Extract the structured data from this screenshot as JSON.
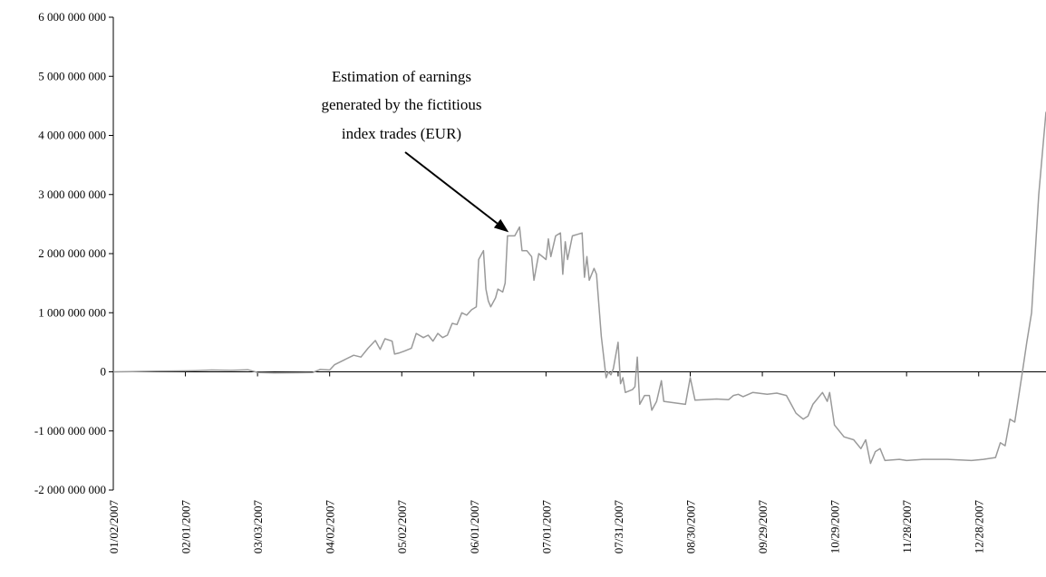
{
  "chart_data": {
    "type": "line",
    "title": "",
    "xlabel": "",
    "ylabel": "",
    "ylim": [
      -2000000000,
      6000000000
    ],
    "y_ticks": [
      {
        "value": 6000000000,
        "label": "6 000 000 000"
      },
      {
        "value": 5000000000,
        "label": "5 000 000 000"
      },
      {
        "value": 4000000000,
        "label": "4 000 000 000"
      },
      {
        "value": 3000000000,
        "label": "3 000 000 000"
      },
      {
        "value": 2000000000,
        "label": "2 000 000 000"
      },
      {
        "value": 1000000000,
        "label": "1 000 000 000"
      },
      {
        "value": 0,
        "label": "0"
      },
      {
        "value": -1000000000,
        "label": "-1 000 000 000"
      },
      {
        "value": -2000000000,
        "label": "-2 000 000 000"
      }
    ],
    "xlim": [
      "01/02/2007",
      "01/25/2008"
    ],
    "x_ticks": [
      "01/02/2007",
      "02/01/2007",
      "03/03/2007",
      "04/02/2007",
      "05/02/2007",
      "06/01/2007",
      "07/01/2007",
      "07/31/2007",
      "08/30/2007",
      "09/29/2007",
      "10/29/2007",
      "11/28/2007",
      "12/28/2007"
    ],
    "grid": false,
    "line_color": "#9a9a9a",
    "annotation": {
      "lines": [
        "Estimation of earnings",
        "generated by the fictitious",
        "index trades (EUR)"
      ],
      "arrow_target": {
        "x": "06/17/2007",
        "y": 2300000000
      }
    },
    "series": [
      {
        "points": [
          [
            "01/02/2007",
            0
          ],
          [
            "01/10/2007",
            5000000
          ],
          [
            "01/20/2007",
            10000000
          ],
          [
            "01/30/2007",
            15000000
          ],
          [
            "02/05/2007",
            20000000
          ],
          [
            "02/12/2007",
            30000000
          ],
          [
            "02/20/2007",
            25000000
          ],
          [
            "02/27/2007",
            35000000
          ],
          [
            "03/03/2007",
            -10000000
          ],
          [
            "03/10/2007",
            -20000000
          ],
          [
            "03/20/2007",
            -15000000
          ],
          [
            "03/26/2007",
            -10000000
          ],
          [
            "03/29/2007",
            40000000
          ],
          [
            "04/02/2007",
            30000000
          ],
          [
            "04/04/2007",
            120000000
          ],
          [
            "04/08/2007",
            200000000
          ],
          [
            "04/12/2007",
            280000000
          ],
          [
            "04/15/2007",
            250000000
          ],
          [
            "04/18/2007",
            400000000
          ],
          [
            "04/21/2007",
            530000000
          ],
          [
            "04/23/2007",
            380000000
          ],
          [
            "04/25/2007",
            560000000
          ],
          [
            "04/28/2007",
            520000000
          ],
          [
            "04/29/2007",
            300000000
          ],
          [
            "05/01/2007",
            320000000
          ],
          [
            "05/03/2007",
            350000000
          ],
          [
            "05/06/2007",
            400000000
          ],
          [
            "05/08/2007",
            650000000
          ],
          [
            "05/11/2007",
            580000000
          ],
          [
            "05/13/2007",
            620000000
          ],
          [
            "05/15/2007",
            520000000
          ],
          [
            "05/17/2007",
            650000000
          ],
          [
            "05/19/2007",
            580000000
          ],
          [
            "05/21/2007",
            620000000
          ],
          [
            "05/23/2007",
            820000000
          ],
          [
            "05/25/2007",
            800000000
          ],
          [
            "05/27/2007",
            1000000000
          ],
          [
            "05/29/2007",
            960000000
          ],
          [
            "05/31/2007",
            1050000000
          ],
          [
            "06/02/2007",
            1100000000
          ],
          [
            "06/03/2007",
            1900000000
          ],
          [
            "06/05/2007",
            2050000000
          ],
          [
            "06/06/2007",
            1400000000
          ],
          [
            "06/07/2007",
            1200000000
          ],
          [
            "06/08/2007",
            1100000000
          ],
          [
            "06/10/2007",
            1250000000
          ],
          [
            "06/11/2007",
            1400000000
          ],
          [
            "06/13/2007",
            1350000000
          ],
          [
            "06/14/2007",
            1500000000
          ],
          [
            "06/15/2007",
            2300000000
          ],
          [
            "06/18/2007",
            2300000000
          ],
          [
            "06/20/2007",
            2450000000
          ],
          [
            "06/21/2007",
            2050000000
          ],
          [
            "06/23/2007",
            2050000000
          ],
          [
            "06/25/2007",
            1950000000
          ],
          [
            "06/26/2007",
            1550000000
          ],
          [
            "06/28/2007",
            2000000000
          ],
          [
            "07/01/2007",
            1900000000
          ],
          [
            "07/02/2007",
            2250000000
          ],
          [
            "07/03/2007",
            1950000000
          ],
          [
            "07/05/2007",
            2300000000
          ],
          [
            "07/07/2007",
            2350000000
          ],
          [
            "07/08/2007",
            1650000000
          ],
          [
            "07/09/2007",
            2200000000
          ],
          [
            "07/10/2007",
            1900000000
          ],
          [
            "07/12/2007",
            2300000000
          ],
          [
            "07/16/2007",
            2350000000
          ],
          [
            "07/17/2007",
            1600000000
          ],
          [
            "07/18/2007",
            1950000000
          ],
          [
            "07/19/2007",
            1550000000
          ],
          [
            "07/21/2007",
            1750000000
          ],
          [
            "07/22/2007",
            1650000000
          ],
          [
            "07/24/2007",
            600000000
          ],
          [
            "07/26/2007",
            -100000000
          ],
          [
            "07/27/2007",
            0
          ],
          [
            "07/28/2007",
            -50000000
          ],
          [
            "07/29/2007",
            50000000
          ],
          [
            "07/31/2007",
            500000000
          ],
          [
            "08/01/2007",
            -200000000
          ],
          [
            "08/02/2007",
            -100000000
          ],
          [
            "08/03/2007",
            -350000000
          ],
          [
            "08/06/2007",
            -300000000
          ],
          [
            "08/07/2007",
            -250000000
          ],
          [
            "08/08/2007",
            250000000
          ],
          [
            "08/09/2007",
            -550000000
          ],
          [
            "08/11/2007",
            -400000000
          ],
          [
            "08/13/2007",
            -400000000
          ],
          [
            "08/14/2007",
            -650000000
          ],
          [
            "08/16/2007",
            -500000000
          ],
          [
            "08/18/2007",
            -150000000
          ],
          [
            "08/19/2007",
            -500000000
          ],
          [
            "08/28/2007",
            -550000000
          ],
          [
            "08/30/2007",
            -100000000
          ],
          [
            "09/01/2007",
            -480000000
          ],
          [
            "09/10/2007",
            -460000000
          ],
          [
            "09/15/2007",
            -470000000
          ],
          [
            "09/17/2007",
            -400000000
          ],
          [
            "09/19/2007",
            -380000000
          ],
          [
            "09/21/2007",
            -420000000
          ],
          [
            "09/25/2007",
            -350000000
          ],
          [
            "10/01/2007",
            -380000000
          ],
          [
            "10/05/2007",
            -360000000
          ],
          [
            "10/09/2007",
            -400000000
          ],
          [
            "10/11/2007",
            -550000000
          ],
          [
            "10/13/2007",
            -700000000
          ],
          [
            "10/16/2007",
            -800000000
          ],
          [
            "10/18/2007",
            -750000000
          ],
          [
            "10/20/2007",
            -550000000
          ],
          [
            "10/24/2007",
            -350000000
          ],
          [
            "10/26/2007",
            -500000000
          ],
          [
            "10/27/2007",
            -350000000
          ],
          [
            "10/29/2007",
            -900000000
          ],
          [
            "11/02/2007",
            -1100000000
          ],
          [
            "11/06/2007",
            -1150000000
          ],
          [
            "11/09/2007",
            -1300000000
          ],
          [
            "11/11/2007",
            -1150000000
          ],
          [
            "11/13/2007",
            -1550000000
          ],
          [
            "11/15/2007",
            -1350000000
          ],
          [
            "11/17/2007",
            -1300000000
          ],
          [
            "11/19/2007",
            -1500000000
          ],
          [
            "11/25/2007",
            -1480000000
          ],
          [
            "11/28/2007",
            -1500000000
          ],
          [
            "12/05/2007",
            -1480000000
          ],
          [
            "12/15/2007",
            -1480000000
          ],
          [
            "12/25/2007",
            -1500000000
          ],
          [
            "12/30/2007",
            -1480000000
          ],
          [
            "01/04/2008",
            -1450000000
          ],
          [
            "01/06/2008",
            -1200000000
          ],
          [
            "01/08/2008",
            -1250000000
          ],
          [
            "01/10/2008",
            -800000000
          ],
          [
            "01/12/2008",
            -850000000
          ],
          [
            "01/15/2008",
            -50000000
          ],
          [
            "01/17/2008",
            500000000
          ],
          [
            "01/19/2008",
            1000000000
          ],
          [
            "01/22/2008",
            3000000000
          ],
          [
            "01/25/2008",
            4400000000
          ]
        ]
      }
    ]
  }
}
